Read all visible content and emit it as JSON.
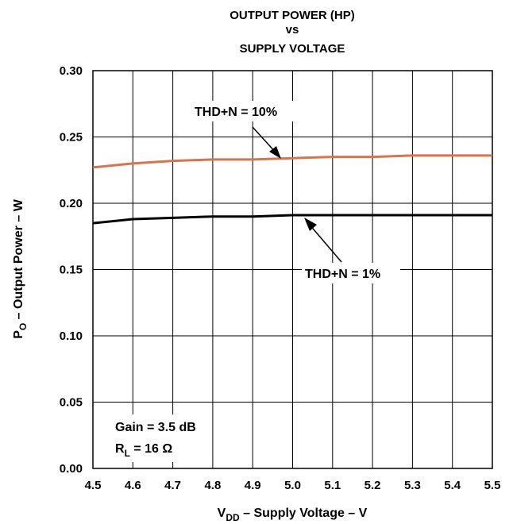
{
  "chart_data": {
    "type": "line",
    "title_lines": [
      "OUTPUT POWER (HP)",
      "vs",
      "SUPPLY VOLTAGE"
    ],
    "xlabel": {
      "base": "V",
      "sub": "DD",
      "rest": " – Supply Voltage – V"
    },
    "ylabel": {
      "base": "P",
      "sub": "O",
      "rest": " – Output Power – W"
    },
    "xlim": [
      4.5,
      5.5
    ],
    "ylim": [
      0.0,
      0.3
    ],
    "x_ticks": [
      "4.5",
      "4.6",
      "4.7",
      "4.8",
      "4.9",
      "5.0",
      "5.1",
      "5.2",
      "5.3",
      "5.4",
      "5.5"
    ],
    "y_ticks": [
      "0.00",
      "0.05",
      "0.10",
      "0.15",
      "0.20",
      "0.25",
      "0.30"
    ],
    "grid": true,
    "series": [
      {
        "name": "THD+N = 10%",
        "color": "#d9734e",
        "x": [
          4.5,
          4.6,
          4.7,
          4.8,
          4.9,
          5.0,
          5.1,
          5.2,
          5.3,
          5.4,
          5.5
        ],
        "y": [
          0.227,
          0.23,
          0.232,
          0.233,
          0.233,
          0.234,
          0.235,
          0.235,
          0.236,
          0.236,
          0.236
        ]
      },
      {
        "name": "THD+N = 1%",
        "color": "#000000",
        "x": [
          4.5,
          4.6,
          4.7,
          4.8,
          4.9,
          5.0,
          5.1,
          5.2,
          5.3,
          5.4,
          5.5
        ],
        "y": [
          0.185,
          0.188,
          0.189,
          0.19,
          0.19,
          0.191,
          0.191,
          0.191,
          0.191,
          0.191,
          0.191
        ]
      }
    ],
    "annotations": {
      "gain": "Gain = 3.5 dB",
      "load": {
        "base": "R",
        "sub": "L",
        "rest": " = 16 Ω"
      }
    }
  }
}
